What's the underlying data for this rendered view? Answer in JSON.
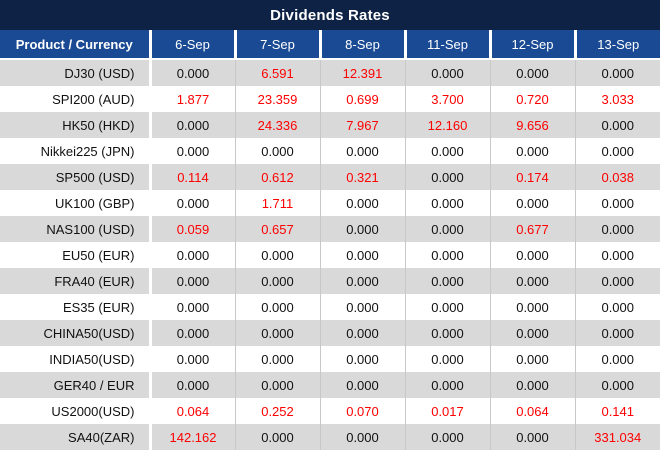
{
  "colors": {
    "title_bg": "#0d2244",
    "header_bg": "#1a4a93",
    "row_alt_bg": "#d9d9d9",
    "row_bg": "#ffffff",
    "grid": "#c8c8c8",
    "highlight": "#fe0000",
    "text": "#111111",
    "header_text": "#ffffff"
  },
  "chart_data": {
    "type": "table",
    "title": "Dividends Rates",
    "product_column_header": "Product / Currency",
    "date_columns": [
      "6-Sep",
      "7-Sep",
      "8-Sep",
      "11-Sep",
      "12-Sep",
      "13-Sep"
    ],
    "value_color_rule": "non-zero values shown in red, zero values in black",
    "layout_hints": {
      "striped_rows": true,
      "product_column_align": "right",
      "value_align": "center"
    },
    "rows": [
      {
        "product": "DJ30 (USD)",
        "values": [
          "0.000",
          "6.591",
          "12.391",
          "0.000",
          "0.000",
          "0.000"
        ]
      },
      {
        "product": "SPI200 (AUD)",
        "values": [
          "1.877",
          "23.359",
          "0.699",
          "3.700",
          "0.720",
          "3.033"
        ]
      },
      {
        "product": "HK50 (HKD)",
        "values": [
          "0.000",
          "24.336",
          "7.967",
          "12.160",
          "9.656",
          "0.000"
        ]
      },
      {
        "product": "Nikkei225 (JPN)",
        "values": [
          "0.000",
          "0.000",
          "0.000",
          "0.000",
          "0.000",
          "0.000"
        ]
      },
      {
        "product": "SP500 (USD)",
        "values": [
          "0.114",
          "0.612",
          "0.321",
          "0.000",
          "0.174",
          "0.038"
        ]
      },
      {
        "product": "UK100 (GBP)",
        "values": [
          "0.000",
          "1.711",
          "0.000",
          "0.000",
          "0.000",
          "0.000"
        ]
      },
      {
        "product": "NAS100 (USD)",
        "values": [
          "0.059",
          "0.657",
          "0.000",
          "0.000",
          "0.677",
          "0.000"
        ]
      },
      {
        "product": "EU50 (EUR)",
        "values": [
          "0.000",
          "0.000",
          "0.000",
          "0.000",
          "0.000",
          "0.000"
        ]
      },
      {
        "product": "FRA40 (EUR)",
        "values": [
          "0.000",
          "0.000",
          "0.000",
          "0.000",
          "0.000",
          "0.000"
        ]
      },
      {
        "product": "ES35 (EUR)",
        "values": [
          "0.000",
          "0.000",
          "0.000",
          "0.000",
          "0.000",
          "0.000"
        ]
      },
      {
        "product": "CHINA50(USD)",
        "values": [
          "0.000",
          "0.000",
          "0.000",
          "0.000",
          "0.000",
          "0.000"
        ]
      },
      {
        "product": "INDIA50(USD)",
        "values": [
          "0.000",
          "0.000",
          "0.000",
          "0.000",
          "0.000",
          "0.000"
        ]
      },
      {
        "product": "GER40 / EUR",
        "values": [
          "0.000",
          "0.000",
          "0.000",
          "0.000",
          "0.000",
          "0.000"
        ]
      },
      {
        "product": "US2000(USD)",
        "values": [
          "0.064",
          "0.252",
          "0.070",
          "0.017",
          "0.064",
          "0.141"
        ]
      },
      {
        "product": "SA40(ZAR)",
        "values": [
          "142.162",
          "0.000",
          "0.000",
          "0.000",
          "0.000",
          "331.034"
        ]
      }
    ]
  }
}
